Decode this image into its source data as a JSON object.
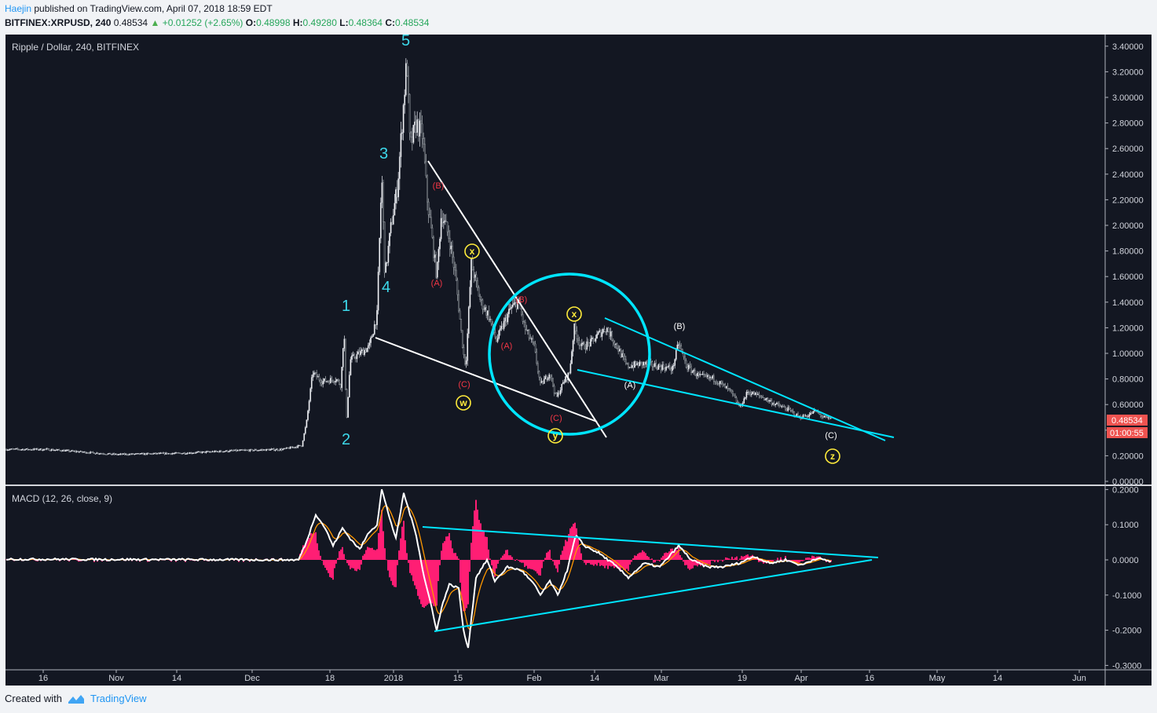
{
  "header": {
    "author": "Haejin",
    "published_text": "published on TradingView.com, April 07, 2018 18:59 EDT",
    "symbol": "BITFINEX:XRPUSD, 240",
    "last": "0.48534",
    "change": "+0.01252 (+2.65%)",
    "o_label": "O:",
    "o_value": "0.48998",
    "h_label": "H:",
    "h_value": "0.49280",
    "l_label": "L:",
    "l_value": "0.48364",
    "c_label": "C:",
    "c_value": "0.48534"
  },
  "main_pane": {
    "title": "Ripple / Dollar, 240, BITFINEX",
    "price_axis": [
      "3.40000",
      "3.20000",
      "3.00000",
      "2.80000",
      "2.60000",
      "2.40000",
      "2.20000",
      "2.00000",
      "1.80000",
      "1.60000",
      "1.40000",
      "1.20000",
      "1.00000",
      "0.80000",
      "0.60000",
      "0.40000",
      "0.20000",
      "0.00000"
    ],
    "price_tag": "0.48534",
    "time_tag": "01:00:55"
  },
  "macd_pane": {
    "title": "MACD (12, 26, close, 9)",
    "axis": [
      "0.2000",
      "0.1000",
      "0.0000",
      "-0.1000",
      "-0.2000",
      "-0.3000"
    ]
  },
  "time_axis": [
    "16",
    "Nov",
    "14",
    "Dec",
    "18",
    "2018",
    "15",
    "Feb",
    "14",
    "Mar",
    "19",
    "Apr",
    "16",
    "May",
    "14",
    "Jun"
  ],
  "footer": {
    "created_with": "Created with",
    "brand": "TradingView"
  },
  "wave_labels": {
    "impulse": [
      "1",
      "2",
      "3",
      "4",
      "5"
    ],
    "red": [
      "(A)",
      "(B)",
      "(C)",
      "(A)",
      "(B)",
      "(C)"
    ],
    "white": [
      "(A)",
      "(B)",
      "(C)"
    ],
    "circled": [
      "x",
      "w",
      "y",
      "x",
      "z"
    ]
  },
  "colors": {
    "background": "#131722",
    "candle": "#d1d4dc",
    "trendline_cyan": "#00e5ff",
    "trendline_white": "#ffffff",
    "red_label": "#f23645",
    "yellow_circle": "#ffeb3b",
    "macd_hist": "#ff1e74",
    "macd_signal": "#ff9800",
    "price_tag_bg": "#ef5350"
  },
  "chart_data": {
    "type": "candlestick",
    "title": "Ripple / Dollar, 240, BITFINEX",
    "symbol": "XRPUSD",
    "ylim": [
      0.0,
      3.4
    ],
    "x_ticks": [
      "16",
      "Nov",
      "14",
      "Dec",
      "18",
      "2018",
      "15",
      "Feb",
      "14",
      "Mar",
      "19",
      "Apr",
      "16",
      "May",
      "14",
      "Jun"
    ],
    "price_path": [
      {
        "t": "Oct 10",
        "price": 0.25
      },
      {
        "t": "Nov 01",
        "price": 0.21
      },
      {
        "t": "Dec 10",
        "price": 0.25
      },
      {
        "t": "Dec 12",
        "price": 0.45
      },
      {
        "t": "Dec 13",
        "price": 0.85
      },
      {
        "t": "Dec 20",
        "price": 1.05
      },
      {
        "t": "Dec 21",
        "price": 0.75
      },
      {
        "t": "Dec 22",
        "price": 1.2
      },
      {
        "t": "Dec 23",
        "price": 0.45
      },
      {
        "t": "Dec 24",
        "price": 0.95
      },
      {
        "t": "Dec 27",
        "price": 1.05
      },
      {
        "t": "Dec 29",
        "price": 2.4
      },
      {
        "t": "Dec 30",
        "price": 1.6
      },
      {
        "t": "Jan 01",
        "price": 2.3
      },
      {
        "t": "Jan 04",
        "price": 3.3
      },
      {
        "t": "Jan 05",
        "price": 2.6
      },
      {
        "t": "Jan 07",
        "price": 2.8
      },
      {
        "t": "Jan 08",
        "price": 2.2
      },
      {
        "t": "Jan 10",
        "price": 1.6
      },
      {
        "t": "Jan 13",
        "price": 2.1
      },
      {
        "t": "Jan 16",
        "price": 1.4
      },
      {
        "t": "Jan 17",
        "price": 0.9
      },
      {
        "t": "Jan 18",
        "price": 1.7
      },
      {
        "t": "Jan 22",
        "price": 1.3
      },
      {
        "t": "Jan 24",
        "price": 1.1
      },
      {
        "t": "Jan 27",
        "price": 1.4
      },
      {
        "t": "Jan 30",
        "price": 1.05
      },
      {
        "t": "Feb 02",
        "price": 0.75
      },
      {
        "t": "Feb 05",
        "price": 0.65
      },
      {
        "t": "Feb 08",
        "price": 0.85
      },
      {
        "t": "Feb 10",
        "price": 1.2
      },
      {
        "t": "Feb 11",
        "price": 1.0
      },
      {
        "t": "Feb 16",
        "price": 1.2
      },
      {
        "t": "Feb 21",
        "price": 1.0
      },
      {
        "t": "Feb 25",
        "price": 0.9
      },
      {
        "t": "Mar 04",
        "price": 1.08
      },
      {
        "t": "Mar 07",
        "price": 0.85
      },
      {
        "t": "Mar 15",
        "price": 0.7
      },
      {
        "t": "Mar 18",
        "price": 0.62
      },
      {
        "t": "Mar 22",
        "price": 0.68
      },
      {
        "t": "Mar 29",
        "price": 0.5
      },
      {
        "t": "Apr 03",
        "price": 0.55
      },
      {
        "t": "Apr 07",
        "price": 0.48534
      }
    ],
    "last_price": 0.48534
  }
}
